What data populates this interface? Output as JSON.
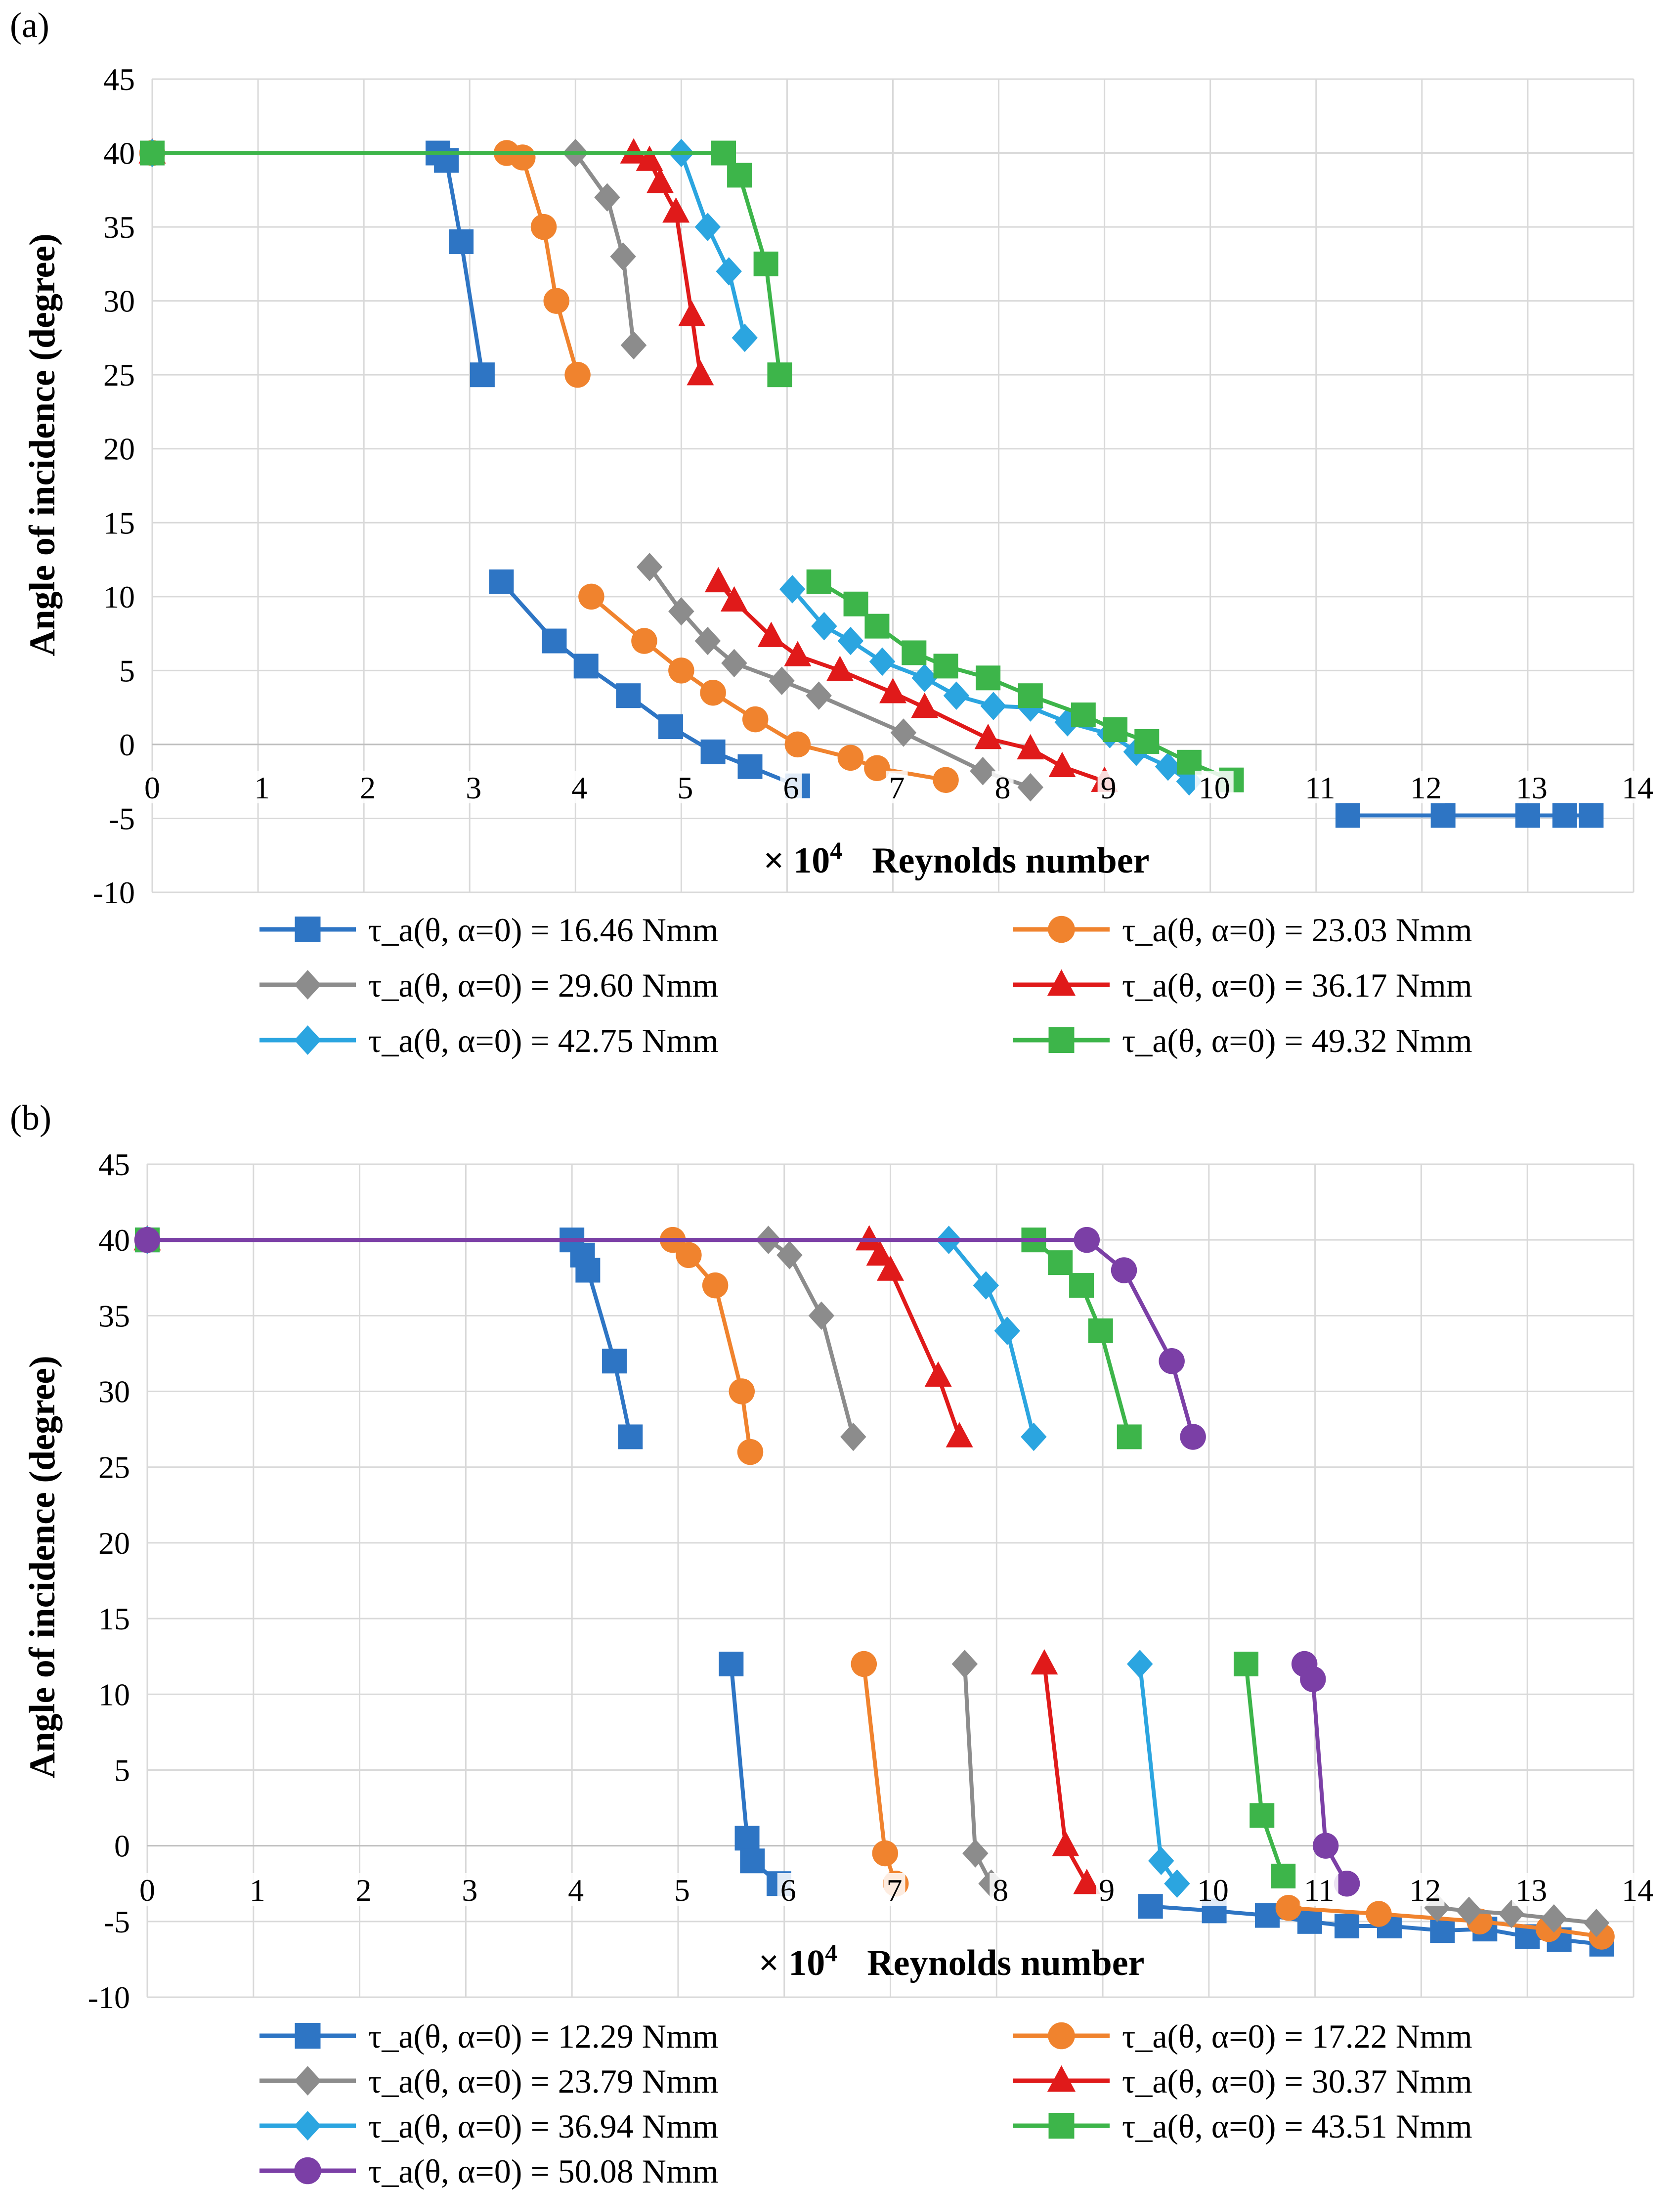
{
  "chart_data": [
    {
      "type": "line",
      "panel_label": "(a)",
      "ylabel": "Angle of incidence (degree)",
      "xlabel_prefix": "× 10",
      "xlabel_exp": "4",
      "xlabel": "Reynolds number",
      "xlim": [
        0,
        14
      ],
      "ylim": [
        -10,
        45
      ],
      "xticks": [
        "0",
        "1",
        "2",
        "3",
        "4",
        "5",
        "6",
        "7",
        "8",
        "9",
        "10",
        "11",
        "12",
        "13",
        "14"
      ],
      "yticks": [
        "-10",
        "-5",
        "0",
        "5",
        "10",
        "15",
        "20",
        "25",
        "30",
        "35",
        "40",
        "45"
      ],
      "grid": true,
      "legend_position": "bottom",
      "series": [
        {
          "name": "τ_a(θ, α=0) = 16.46 Nmm",
          "color": "#2E75C4",
          "marker": "square",
          "segments": [
            [
              [
                0,
                40
              ],
              [
                2.7,
                40
              ],
              [
                2.78,
                39.5
              ],
              [
                2.92,
                34
              ],
              [
                3.12,
                25
              ]
            ],
            [
              [
                3.3,
                11
              ],
              [
                3.8,
                7
              ],
              [
                4.1,
                5.3
              ],
              [
                4.5,
                3.3
              ],
              [
                4.9,
                1.2
              ],
              [
                5.3,
                -0.5
              ],
              [
                5.65,
                -1.5
              ],
              [
                6.1,
                -2.8
              ]
            ],
            [
              [
                11.3,
                -4.8
              ],
              [
                12.2,
                -4.8
              ],
              [
                13,
                -4.8
              ],
              [
                13.35,
                -4.8
              ],
              [
                13.6,
                -4.8
              ]
            ]
          ]
        },
        {
          "name": "τ_a(θ, α=0) = 23.03 Nmm",
          "color": "#F0832E",
          "marker": "circle",
          "segments": [
            [
              [
                0,
                40
              ],
              [
                3.35,
                40
              ],
              [
                3.5,
                39.7
              ],
              [
                3.7,
                35
              ],
              [
                3.82,
                30
              ],
              [
                4.02,
                25
              ]
            ],
            [
              [
                4.15,
                10
              ],
              [
                4.65,
                7
              ],
              [
                5.0,
                5
              ],
              [
                5.3,
                3.5
              ],
              [
                5.7,
                1.7
              ],
              [
                6.1,
                0
              ],
              [
                6.6,
                -0.9
              ],
              [
                6.85,
                -1.6
              ],
              [
                7.5,
                -2.4
              ]
            ]
          ]
        },
        {
          "name": "τ_a(θ, α=0) = 29.60 Nmm",
          "color": "#8C8C8C",
          "marker": "diamond",
          "segments": [
            [
              [
                0,
                40
              ],
              [
                4.0,
                40
              ],
              [
                4.3,
                37
              ],
              [
                4.45,
                33
              ],
              [
                4.55,
                27
              ]
            ],
            [
              [
                4.7,
                12
              ],
              [
                5.0,
                9
              ],
              [
                5.25,
                7
              ],
              [
                5.5,
                5.5
              ],
              [
                5.95,
                4.3
              ],
              [
                6.3,
                3.3
              ],
              [
                7.1,
                0.8
              ],
              [
                7.85,
                -1.8
              ],
              [
                8.3,
                -2.9
              ]
            ]
          ]
        },
        {
          "name": "τ_a(θ, α=0) = 36.17 Nmm",
          "color": "#E01A1A",
          "marker": "triangle",
          "segments": [
            [
              [
                0,
                40
              ],
              [
                4.55,
                40
              ],
              [
                4.7,
                39.5
              ],
              [
                4.8,
                38
              ],
              [
                4.95,
                36
              ],
              [
                5.1,
                29
              ],
              [
                5.18,
                25
              ]
            ],
            [
              [
                5.35,
                11
              ],
              [
                5.5,
                9.7
              ],
              [
                5.85,
                7.3
              ],
              [
                6.1,
                6
              ],
              [
                6.5,
                5
              ],
              [
                7.0,
                3.5
              ],
              [
                7.3,
                2.5
              ],
              [
                7.9,
                0.4
              ],
              [
                8.3,
                -0.3
              ],
              [
                8.6,
                -1.5
              ],
              [
                9.0,
                -2.5
              ]
            ]
          ]
        },
        {
          "name": "τ_a(θ, α=0) = 42.75 Nmm",
          "color": "#2BA5E0",
          "marker": "diamond",
          "segments": [
            [
              [
                0,
                40
              ],
              [
                5.0,
                40
              ],
              [
                5.25,
                35
              ],
              [
                5.45,
                32
              ],
              [
                5.6,
                27.5
              ]
            ],
            [
              [
                6.05,
                10.5
              ],
              [
                6.35,
                8
              ],
              [
                6.6,
                7
              ],
              [
                6.9,
                5.6
              ],
              [
                7.3,
                4.5
              ],
              [
                7.6,
                3.3
              ],
              [
                7.95,
                2.6
              ],
              [
                8.3,
                2.5
              ],
              [
                8.65,
                1.5
              ],
              [
                9.05,
                0.7
              ],
              [
                9.3,
                -0.5
              ],
              [
                9.6,
                -1.5
              ],
              [
                9.8,
                -2.5
              ]
            ]
          ]
        },
        {
          "name": "τ_a(θ, α=0) = 49.32 Nmm",
          "color": "#3DB54A",
          "marker": "square",
          "segments": [
            [
              [
                0,
                40
              ],
              [
                5.4,
                40
              ],
              [
                5.55,
                38.5
              ],
              [
                5.8,
                32.5
              ],
              [
                5.93,
                25
              ]
            ],
            [
              [
                6.3,
                11
              ],
              [
                6.65,
                9.5
              ],
              [
                6.85,
                8
              ],
              [
                7.2,
                6.2
              ],
              [
                7.5,
                5.3
              ],
              [
                7.9,
                4.5
              ],
              [
                8.3,
                3.3
              ],
              [
                8.8,
                2
              ],
              [
                9.1,
                1
              ],
              [
                9.4,
                0.2
              ],
              [
                9.8,
                -1.2
              ],
              [
                10.2,
                -2.4
              ]
            ]
          ]
        }
      ]
    },
    {
      "type": "line",
      "panel_label": "(b)",
      "ylabel": "Angle of incidence (degree)",
      "xlabel_prefix": "× 10",
      "xlabel_exp": "4",
      "xlabel": "Reynolds number",
      "xlim": [
        0,
        14
      ],
      "ylim": [
        -10,
        45
      ],
      "xticks": [
        "0",
        "1",
        "2",
        "3",
        "4",
        "5",
        "6",
        "7",
        "8",
        "9",
        "10",
        "11",
        "12",
        "13",
        "14"
      ],
      "yticks": [
        "-10",
        "-5",
        "0",
        "5",
        "10",
        "15",
        "20",
        "25",
        "30",
        "35",
        "40",
        "45"
      ],
      "grid": true,
      "legend_position": "bottom",
      "series": [
        {
          "name": "τ_a(θ, α=0) = 12.29 Nmm",
          "color": "#2E75C4",
          "marker": "square",
          "segments": [
            [
              [
                0,
                40
              ],
              [
                4.0,
                40
              ],
              [
                4.1,
                39
              ],
              [
                4.15,
                38
              ],
              [
                4.4,
                32
              ],
              [
                4.55,
                27
              ]
            ],
            [
              [
                5.5,
                12
              ],
              [
                5.65,
                0.5
              ],
              [
                5.7,
                -1
              ],
              [
                5.95,
                -2.5
              ]
            ],
            [
              [
                9.45,
                -4
              ],
              [
                10.05,
                -4.3
              ],
              [
                10.55,
                -4.6
              ],
              [
                10.95,
                -5
              ],
              [
                11.3,
                -5.3
              ],
              [
                11.7,
                -5.3
              ],
              [
                12.2,
                -5.6
              ],
              [
                12.6,
                -5.5
              ],
              [
                13.0,
                -6
              ],
              [
                13.3,
                -6.2
              ],
              [
                13.7,
                -6.5
              ]
            ]
          ]
        },
        {
          "name": "τ_a(θ, α=0) = 17.22 Nmm",
          "color": "#F0832E",
          "marker": "circle",
          "segments": [
            [
              [
                0,
                40
              ],
              [
                4.95,
                40
              ],
              [
                5.1,
                39
              ],
              [
                5.35,
                37
              ],
              [
                5.6,
                30
              ],
              [
                5.68,
                26
              ]
            ],
            [
              [
                6.75,
                12
              ],
              [
                6.95,
                -0.5
              ],
              [
                7.05,
                -2.5
              ]
            ],
            [
              [
                10.75,
                -4.1
              ],
              [
                11.6,
                -4.5
              ],
              [
                12.55,
                -5
              ],
              [
                13.2,
                -5.5
              ],
              [
                13.7,
                -6
              ]
            ]
          ]
        },
        {
          "name": "τ_a(θ, α=0) = 23.79 Nmm",
          "color": "#8C8C8C",
          "marker": "diamond",
          "segments": [
            [
              [
                0,
                40
              ],
              [
                5.85,
                40
              ],
              [
                6.05,
                39
              ],
              [
                6.35,
                35
              ],
              [
                6.65,
                27
              ]
            ],
            [
              [
                7.7,
                12
              ],
              [
                7.8,
                -0.5
              ],
              [
                7.95,
                -2.5
              ]
            ],
            [
              [
                12.15,
                -4.1
              ],
              [
                12.45,
                -4.3
              ],
              [
                12.85,
                -4.5
              ],
              [
                13.25,
                -4.8
              ],
              [
                13.65,
                -5.1
              ]
            ]
          ]
        },
        {
          "name": "τ_a(θ, α=0) = 30.37 Nmm",
          "color": "#E01A1A",
          "marker": "triangle",
          "segments": [
            [
              [
                0,
                40
              ],
              [
                6.8,
                40
              ],
              [
                6.9,
                39
              ],
              [
                7.0,
                38
              ],
              [
                7.45,
                31
              ],
              [
                7.65,
                27
              ]
            ],
            [
              [
                8.45,
                12
              ],
              [
                8.65,
                0
              ],
              [
                8.85,
                -2.5
              ]
            ]
          ]
        },
        {
          "name": "τ_a(θ, α=0) = 36.94 Nmm",
          "color": "#2BA5E0",
          "marker": "diamond",
          "segments": [
            [
              [
                0,
                40
              ],
              [
                7.55,
                40
              ],
              [
                7.9,
                37
              ],
              [
                8.1,
                34
              ],
              [
                8.35,
                27
              ]
            ],
            [
              [
                9.35,
                12
              ],
              [
                9.55,
                -1
              ],
              [
                9.7,
                -2.5
              ]
            ]
          ]
        },
        {
          "name": "τ_a(θ, α=0) = 43.51 Nmm",
          "color": "#3DB54A",
          "marker": "square",
          "segments": [
            [
              [
                0,
                40
              ],
              [
                8.35,
                40
              ],
              [
                8.6,
                38.5
              ],
              [
                8.8,
                37
              ],
              [
                8.98,
                34
              ],
              [
                9.25,
                27
              ]
            ],
            [
              [
                10.35,
                12
              ],
              [
                10.5,
                2
              ],
              [
                10.7,
                -2
              ]
            ]
          ]
        },
        {
          "name": "τ_a(θ, α=0) = 50.08 Nmm",
          "color": "#7B3FA6",
          "marker": "circle",
          "segments": [
            [
              [
                0,
                40
              ],
              [
                8.85,
                40
              ],
              [
                9.2,
                38
              ],
              [
                9.65,
                32
              ],
              [
                9.85,
                27
              ]
            ],
            [
              [
                10.9,
                12
              ],
              [
                10.98,
                11
              ],
              [
                11.1,
                0
              ],
              [
                11.3,
                -2.5
              ]
            ]
          ]
        }
      ]
    }
  ]
}
